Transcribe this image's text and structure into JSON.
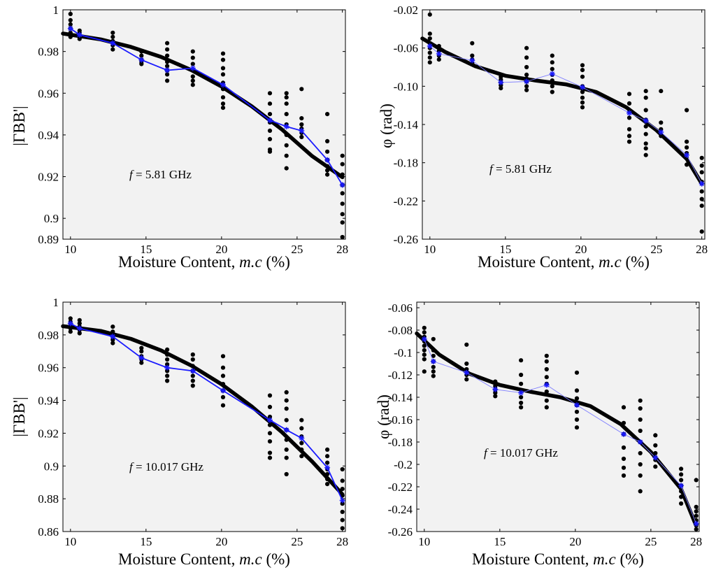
{
  "chart_data": [
    {
      "id": "a",
      "type": "scatter",
      "xlabel": {
        "prefix": "Moisture Content, ",
        "italic": "m.c",
        "suffix": " (%)"
      },
      "ylabel": "|ΓBB'|",
      "annotation": {
        "var": "f",
        "text": " = 5.81 GHz"
      },
      "xlim": [
        9.5,
        28.2
      ],
      "ylim": [
        0.89,
        1.0
      ],
      "xticks": [
        10,
        15,
        20,
        25,
        28
      ],
      "yticks": [
        0.89,
        0.9,
        0.92,
        0.94,
        0.96,
        0.98,
        1
      ],
      "ytick_labels": [
        "0.89",
        "0.9",
        "0.92",
        "0.94",
        "0.96",
        "0.98",
        "1"
      ],
      "xs": [
        10,
        10.6,
        12.8,
        14.7,
        16.4,
        18.1,
        20.1,
        23.2,
        24.3,
        25.3,
        27,
        28
      ],
      "mean": [
        0.991,
        0.988,
        0.984,
        0.976,
        0.971,
        0.972,
        0.964,
        0.947,
        0.944,
        0.942,
        0.928,
        0.916
      ],
      "samples": [
        [
          0.998,
          0.995,
          0.993,
          0.991,
          0.989,
          0.987
        ],
        [
          0.99,
          0.989,
          0.988,
          0.987,
          0.986
        ],
        [
          0.989,
          0.987,
          0.985,
          0.983,
          0.981
        ],
        [
          0.98,
          0.978,
          0.976,
          0.975,
          0.974
        ],
        [
          0.984,
          0.981,
          0.978,
          0.975,
          0.973,
          0.971,
          0.969,
          0.966
        ],
        [
          0.98,
          0.977,
          0.974,
          0.971,
          0.968,
          0.966,
          0.964
        ],
        [
          0.979,
          0.976,
          0.972,
          0.969,
          0.965,
          0.962,
          0.958,
          0.955,
          0.953
        ],
        [
          0.96,
          0.955,
          0.95,
          0.946,
          0.942,
          0.938,
          0.933,
          0.932
        ],
        [
          0.96,
          0.958,
          0.955,
          0.95,
          0.945,
          0.94,
          0.935,
          0.93,
          0.924
        ],
        [
          0.962,
          0.948,
          0.945,
          0.943,
          0.941,
          0.939
        ],
        [
          0.95,
          0.937,
          0.932,
          0.928,
          0.925,
          0.923,
          0.921
        ],
        [
          0.93,
          0.926,
          0.921,
          0.916,
          0.912,
          0.907,
          0.902,
          0.898,
          0.891
        ]
      ],
      "fit": [
        [
          9.5,
          0.9886
        ],
        [
          12,
          0.9858
        ],
        [
          14,
          0.9822
        ],
        [
          16,
          0.9774
        ],
        [
          18,
          0.9711
        ],
        [
          20,
          0.9632
        ],
        [
          22,
          0.9537
        ],
        [
          24,
          0.9426
        ],
        [
          26,
          0.9298
        ],
        [
          28,
          0.9197
        ]
      ],
      "mean_style": "bold"
    },
    {
      "id": "b",
      "type": "scatter",
      "xlabel": {
        "prefix": "Moisture Content, ",
        "italic": "m.c",
        "suffix": " (%)"
      },
      "ylabel": "φ (rad)",
      "annotation": {
        "var": "f",
        "text": " = 5.81 GHz"
      },
      "xlim": [
        9.5,
        28.2
      ],
      "ylim": [
        -0.26,
        -0.02
      ],
      "xticks": [
        10,
        15,
        20,
        25,
        28
      ],
      "yticks": [
        -0.26,
        -0.22,
        -0.18,
        -0.14,
        -0.1,
        -0.06,
        -0.02
      ],
      "ytick_labels": [
        "-0.26",
        "-0.22",
        "-0.18",
        "-0.14",
        "-0.10",
        "-0.06",
        "-0.02"
      ],
      "xs": [
        10,
        10.6,
        12.8,
        14.7,
        16.4,
        18.1,
        20.1,
        23.2,
        24.3,
        25.3,
        27,
        28
      ],
      "mean": [
        -0.058,
        -0.066,
        -0.073,
        -0.096,
        -0.095,
        -0.087,
        -0.101,
        -0.128,
        -0.136,
        -0.148,
        -0.172,
        -0.202
      ],
      "samples": [
        [
          -0.025,
          -0.045,
          -0.05,
          -0.055,
          -0.06,
          -0.065,
          -0.07,
          -0.075
        ],
        [
          -0.058,
          -0.063,
          -0.068,
          -0.072
        ],
        [
          -0.055,
          -0.068,
          -0.072,
          -0.076
        ],
        [
          -0.09,
          -0.093,
          -0.096,
          -0.099,
          -0.102
        ],
        [
          -0.06,
          -0.07,
          -0.08,
          -0.088,
          -0.092,
          -0.095,
          -0.1,
          -0.104
        ],
        [
          -0.068,
          -0.075,
          -0.082,
          -0.088,
          -0.094,
          -0.1,
          -0.106
        ],
        [
          -0.078,
          -0.083,
          -0.09,
          -0.1,
          -0.106,
          -0.112,
          -0.117,
          -0.122
        ],
        [
          -0.108,
          -0.118,
          -0.127,
          -0.133,
          -0.145,
          -0.152,
          -0.158
        ],
        [
          -0.105,
          -0.112,
          -0.125,
          -0.135,
          -0.142,
          -0.15,
          -0.16,
          -0.165,
          -0.172
        ],
        [
          -0.105,
          -0.138,
          -0.145,
          -0.152
        ],
        [
          -0.125,
          -0.158,
          -0.164,
          -0.17,
          -0.175,
          -0.182
        ],
        [
          -0.175,
          -0.183,
          -0.19,
          -0.2,
          -0.21,
          -0.218,
          -0.225,
          -0.252
        ]
      ],
      "fit": [
        [
          9.5,
          -0.05
        ],
        [
          11,
          -0.064
        ],
        [
          13,
          -0.079
        ],
        [
          15,
          -0.089
        ],
        [
          17,
          -0.094
        ],
        [
          19,
          -0.098
        ],
        [
          21,
          -0.106
        ],
        [
          23,
          -0.122
        ],
        [
          25,
          -0.146
        ],
        [
          27,
          -0.176
        ],
        [
          28,
          -0.202
        ]
      ],
      "mean_style": "thin"
    },
    {
      "id": "c",
      "type": "scatter",
      "xlabel": {
        "prefix": "Moisture Content, ",
        "italic": "m.c",
        "suffix": " (%)"
      },
      "ylabel": "|ΓBB'|",
      "annotation": {
        "var": "f",
        "text": " = 10.017 GHz"
      },
      "xlim": [
        9.5,
        28.2
      ],
      "ylim": [
        0.86,
        1.0
      ],
      "xticks": [
        10,
        15,
        20,
        25,
        28
      ],
      "yticks": [
        0.86,
        0.88,
        0.9,
        0.92,
        0.94,
        0.96,
        0.98,
        1
      ],
      "ytick_labels": [
        "0.86",
        "0.88",
        "0.9",
        "0.92",
        "0.94",
        "0.96",
        "0.98",
        "1"
      ],
      "xs": [
        10,
        10.6,
        12.8,
        14.7,
        16.4,
        18.1,
        20.1,
        23.2,
        24.3,
        25.3,
        27,
        28
      ],
      "mean": [
        0.987,
        0.984,
        0.979,
        0.966,
        0.96,
        0.958,
        0.946,
        0.928,
        0.922,
        0.917,
        0.899,
        0.879
      ],
      "samples": [
        [
          0.99,
          0.988,
          0.986,
          0.984,
          0.982
        ],
        [
          0.989,
          0.987,
          0.985,
          0.983,
          0.981
        ],
        [
          0.985,
          0.982,
          0.979,
          0.977,
          0.975
        ],
        [
          0.972,
          0.97,
          0.967,
          0.965,
          0.963
        ],
        [
          0.971,
          0.968,
          0.965,
          0.962,
          0.958,
          0.955,
          0.952
        ],
        [
          0.968,
          0.965,
          0.961,
          0.958,
          0.955,
          0.952,
          0.949
        ],
        [
          0.967,
          0.96,
          0.955,
          0.95,
          0.946,
          0.942,
          0.937
        ],
        [
          0.943,
          0.936,
          0.93,
          0.925,
          0.92,
          0.915,
          0.908,
          0.905
        ],
        [
          0.945,
          0.94,
          0.935,
          0.928,
          0.922,
          0.916,
          0.91,
          0.905,
          0.895
        ],
        [
          0.928,
          0.923,
          0.918,
          0.914,
          0.91,
          0.906
        ],
        [
          0.91,
          0.906,
          0.902,
          0.898,
          0.895,
          0.892,
          0.889
        ],
        [
          0.898,
          0.891,
          0.886,
          0.882,
          0.877,
          0.872,
          0.867,
          0.862
        ]
      ],
      "fit": [
        [
          9.5,
          0.9853
        ],
        [
          12,
          0.9824
        ],
        [
          14,
          0.9776
        ],
        [
          16,
          0.9705
        ],
        [
          18,
          0.9613
        ],
        [
          20,
          0.9499
        ],
        [
          22,
          0.9363
        ],
        [
          24,
          0.9206
        ],
        [
          26,
          0.9027
        ],
        [
          28,
          0.8827
        ]
      ],
      "mean_style": "bold"
    },
    {
      "id": "d",
      "type": "scatter",
      "xlabel": {
        "prefix": "Moisture Content, ",
        "italic": "m.c",
        "suffix": " (%)"
      },
      "ylabel": "φ (rad)",
      "annotation": {
        "var": "f",
        "text": " = 10.017 GHz"
      },
      "xlim": [
        9.5,
        28.2
      ],
      "ylim": [
        -0.26,
        -0.055
      ],
      "xticks": [
        10,
        15,
        20,
        25,
        28
      ],
      "yticks": [
        -0.26,
        -0.24,
        -0.22,
        -0.2,
        -0.18,
        -0.16,
        -0.14,
        -0.12,
        -0.1,
        -0.08,
        -0.06
      ],
      "ytick_labels": [
        "-0.26",
        "-0.24",
        "-0.22",
        "-0.2",
        "-0.18",
        "-0.16",
        "-0.14",
        "-0.12",
        "-0.1",
        "-0.08",
        "-0.06"
      ],
      "xs": [
        10,
        10.6,
        12.8,
        14.7,
        16.4,
        18.1,
        20.1,
        23.2,
        24.3,
        25.3,
        27,
        28
      ],
      "mean": [
        -0.088,
        -0.108,
        -0.118,
        -0.133,
        -0.136,
        -0.129,
        -0.147,
        -0.173,
        -0.18,
        -0.194,
        -0.219,
        -0.253
      ],
      "samples": [
        [
          -0.078,
          -0.082,
          -0.086,
          -0.09,
          -0.094,
          -0.098,
          -0.102,
          -0.106,
          -0.117
        ],
        [
          -0.088,
          -0.098,
          -0.103,
          -0.108,
          -0.113,
          -0.117,
          -0.121
        ],
        [
          -0.093,
          -0.11,
          -0.115,
          -0.12,
          -0.124
        ],
        [
          -0.126,
          -0.13,
          -0.133,
          -0.136,
          -0.139
        ],
        [
          -0.107,
          -0.12,
          -0.128,
          -0.134,
          -0.14,
          -0.145,
          -0.149
        ],
        [
          -0.103,
          -0.108,
          -0.115,
          -0.122,
          -0.128,
          -0.135,
          -0.143,
          -0.149
        ],
        [
          -0.118,
          -0.134,
          -0.141,
          -0.147,
          -0.153,
          -0.16,
          -0.167
        ],
        [
          -0.149,
          -0.163,
          -0.173,
          -0.185,
          -0.195,
          -0.203,
          -0.21
        ],
        [
          -0.143,
          -0.15,
          -0.16,
          -0.17,
          -0.18,
          -0.19,
          -0.2,
          -0.21,
          -0.224
        ],
        [
          -0.174,
          -0.183,
          -0.19,
          -0.196,
          -0.202
        ],
        [
          -0.204,
          -0.209,
          -0.214,
          -0.219,
          -0.224,
          -0.229,
          -0.235
        ],
        [
          -0.214,
          -0.238,
          -0.242,
          -0.246,
          -0.25,
          -0.254,
          -0.258
        ]
      ],
      "fit": [
        [
          9.5,
          -0.083
        ],
        [
          11,
          -0.102
        ],
        [
          13,
          -0.119
        ],
        [
          15,
          -0.129
        ],
        [
          17,
          -0.135
        ],
        [
          19,
          -0.14
        ],
        [
          21,
          -0.148
        ],
        [
          23,
          -0.164
        ],
        [
          25,
          -0.189
        ],
        [
          27,
          -0.222
        ],
        [
          28,
          -0.255
        ]
      ],
      "mean_style": "thin"
    }
  ]
}
